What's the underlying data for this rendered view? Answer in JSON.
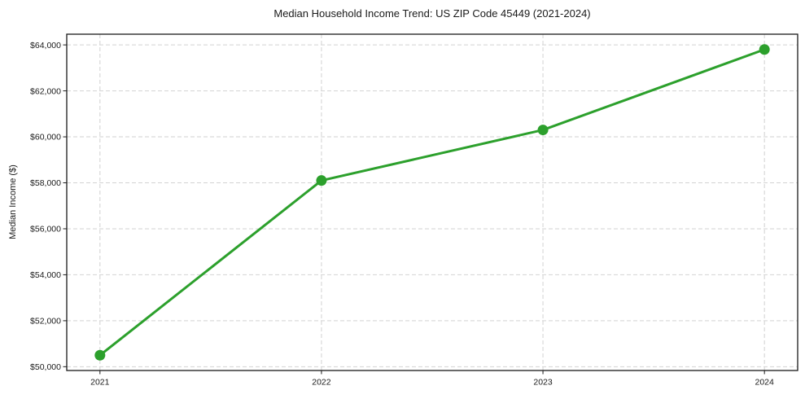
{
  "chart_data": {
    "type": "line",
    "title": "Median Household Income Trend: US ZIP Code 45449 (2021-2024)",
    "xlabel": "",
    "ylabel": "Median Income ($)",
    "x": [
      2021,
      2022,
      2023,
      2024
    ],
    "xtick_labels": [
      "2021",
      "2022",
      "2023",
      "2024"
    ],
    "values": [
      50500,
      58100,
      60300,
      63800
    ],
    "yticks": [
      50000,
      52000,
      54000,
      56000,
      58000,
      60000,
      62000,
      64000
    ],
    "ytick_labels": [
      "$50,000",
      "$52,000",
      "$54,000",
      "$56,000",
      "$58,000",
      "$60,000",
      "$62,000",
      "$64,000"
    ],
    "xlim": [
      2020.85,
      2024.15
    ],
    "ylim": [
      49835,
      64465
    ],
    "grid": true,
    "grid_style": "dashed",
    "legend": "none",
    "line_color": "#2ca02c",
    "marker": "circle",
    "marker_color": "#2ca02c"
  }
}
